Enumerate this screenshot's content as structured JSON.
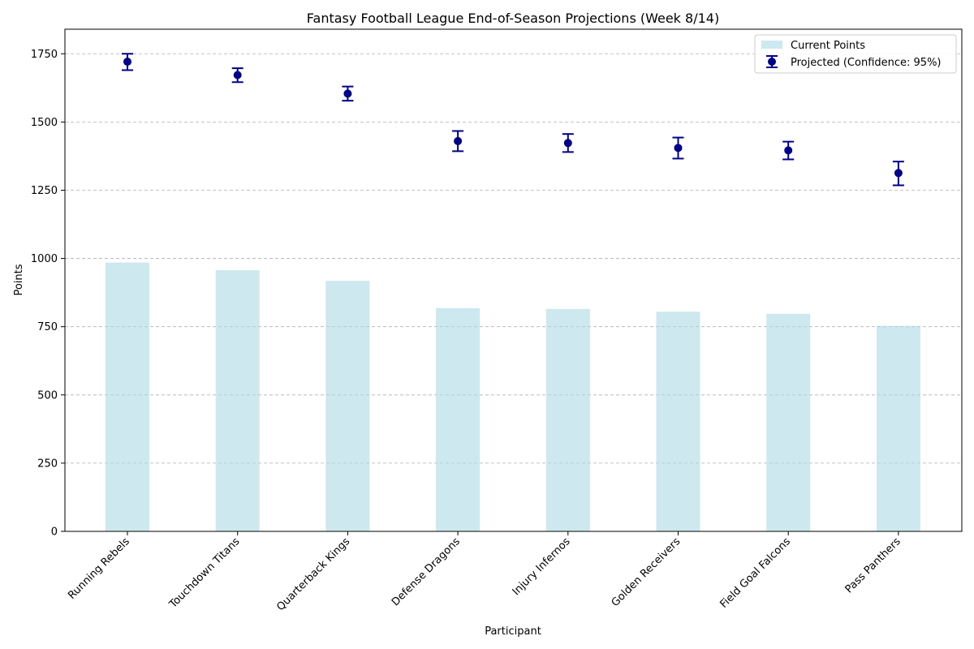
{
  "chart_data": {
    "type": "bar",
    "title": "Fantasy Football League End-of-Season Projections (Week 8/14)",
    "xlabel": "Participant",
    "ylabel": "Points",
    "ylim": [
      0,
      1840
    ],
    "yticks": [
      0,
      250,
      500,
      750,
      1000,
      1250,
      1500,
      1750
    ],
    "grid": "y-dashed",
    "legend_position": "top-right",
    "categories": [
      "Running Rebels",
      "Touchdown Titans",
      "Quarterback Kings",
      "Defense Dragons",
      "Injury Infernos",
      "Golden Receivers",
      "Field Goal Falcons",
      "Pass Panthers"
    ],
    "series": [
      {
        "name": "Current Points",
        "kind": "bar",
        "color": "#add8e6",
        "values": [
          985,
          957,
          918,
          818,
          815,
          805,
          797,
          753
        ]
      },
      {
        "name": "Projected (Confidence: 95%)",
        "kind": "errorbar",
        "color": "#00008b",
        "values": [
          1721,
          1672,
          1604,
          1430,
          1423,
          1405,
          1396,
          1313
        ],
        "lower": [
          1690,
          1646,
          1578,
          1393,
          1390,
          1366,
          1363,
          1268
        ],
        "upper": [
          1750,
          1697,
          1630,
          1467,
          1456,
          1443,
          1428,
          1355
        ]
      }
    ]
  }
}
